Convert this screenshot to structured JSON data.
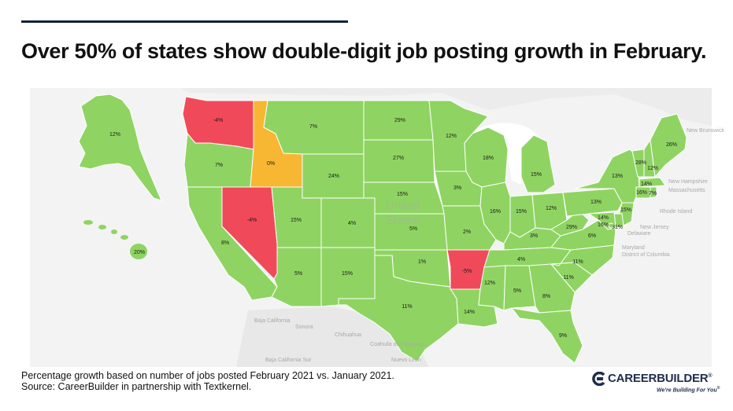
{
  "headline": "Over 50% of states show double-digit job posting growth in February.",
  "footnote": {
    "line1": "Percentage growth based on number of jobs posted February 2021 vs. January 2021.",
    "line2": "Source: CareerBuilder in partnership with Textkernel."
  },
  "brand": {
    "name": "CAREERBUILDER",
    "tagline": "We're Building For You",
    "registered": "®"
  },
  "colors": {
    "growth": "#8fd462",
    "flat": "#f7b733",
    "decline": "#f04a5a",
    "background": "#f3f3f3",
    "water": "#ffffff"
  },
  "map_labels": {
    "country": [
      "United",
      "States"
    ],
    "places": [
      "New Brunswick",
      "New Hampshire",
      "Massachusetts",
      "Rhode Island",
      "New Jersey",
      "Delaware",
      "Maryland",
      "District of Columbia",
      "Baja California",
      "Sonora",
      "Chihuahua",
      "Coahuila de Zaragoza",
      "Baja California Sur",
      "Nuevo León"
    ]
  },
  "states": [
    {
      "id": "AK",
      "value": "12%"
    },
    {
      "id": "HI",
      "value": "20%"
    },
    {
      "id": "WA",
      "value": "-4%"
    },
    {
      "id": "OR",
      "value": "7%"
    },
    {
      "id": "CA",
      "value": "8%"
    },
    {
      "id": "NV",
      "value": "-4%"
    },
    {
      "id": "ID",
      "value": "0%"
    },
    {
      "id": "MT",
      "value": "7%"
    },
    {
      "id": "WY",
      "value": "24%"
    },
    {
      "id": "UT",
      "value": "15%"
    },
    {
      "id": "AZ",
      "value": "5%"
    },
    {
      "id": "CO",
      "value": "4%"
    },
    {
      "id": "NM",
      "value": "15%"
    },
    {
      "id": "ND",
      "value": "29%"
    },
    {
      "id": "SD",
      "value": "27%"
    },
    {
      "id": "NE",
      "value": "15%"
    },
    {
      "id": "KS",
      "value": "5%"
    },
    {
      "id": "OK",
      "value": "1%"
    },
    {
      "id": "TX",
      "value": "11%"
    },
    {
      "id": "MN",
      "value": "12%"
    },
    {
      "id": "IA",
      "value": "3%"
    },
    {
      "id": "MO",
      "value": "2%"
    },
    {
      "id": "AR",
      "value": "-5%"
    },
    {
      "id": "LA",
      "value": "14%"
    },
    {
      "id": "WI",
      "value": "18%"
    },
    {
      "id": "IL",
      "value": "16%"
    },
    {
      "id": "MI",
      "value": "15%"
    },
    {
      "id": "IN",
      "value": "15%"
    },
    {
      "id": "OH",
      "value": "12%"
    },
    {
      "id": "KY",
      "value": "3%"
    },
    {
      "id": "TN",
      "value": "4%"
    },
    {
      "id": "MS",
      "value": "12%"
    },
    {
      "id": "AL",
      "value": "5%"
    },
    {
      "id": "GA",
      "value": "8%"
    },
    {
      "id": "FL",
      "value": "9%"
    },
    {
      "id": "SC",
      "value": "11%"
    },
    {
      "id": "NC",
      "value": "11%"
    },
    {
      "id": "VA",
      "value": "6%"
    },
    {
      "id": "WV",
      "value": "29%"
    },
    {
      "id": "PA",
      "value": "13%"
    },
    {
      "id": "NY",
      "value": "13%"
    },
    {
      "id": "VT",
      "value": "28%"
    },
    {
      "id": "NH",
      "value": "12%"
    },
    {
      "id": "ME",
      "value": "26%"
    },
    {
      "id": "MA",
      "value": "14%"
    },
    {
      "id": "CT",
      "value": "16%"
    },
    {
      "id": "RI",
      "value": "7%"
    },
    {
      "id": "NJ",
      "value": "15%"
    },
    {
      "id": "DE",
      "value": "14%"
    },
    {
      "id": "MD",
      "value": "16%"
    },
    {
      "id": "DC",
      "value": "31%"
    }
  ]
}
